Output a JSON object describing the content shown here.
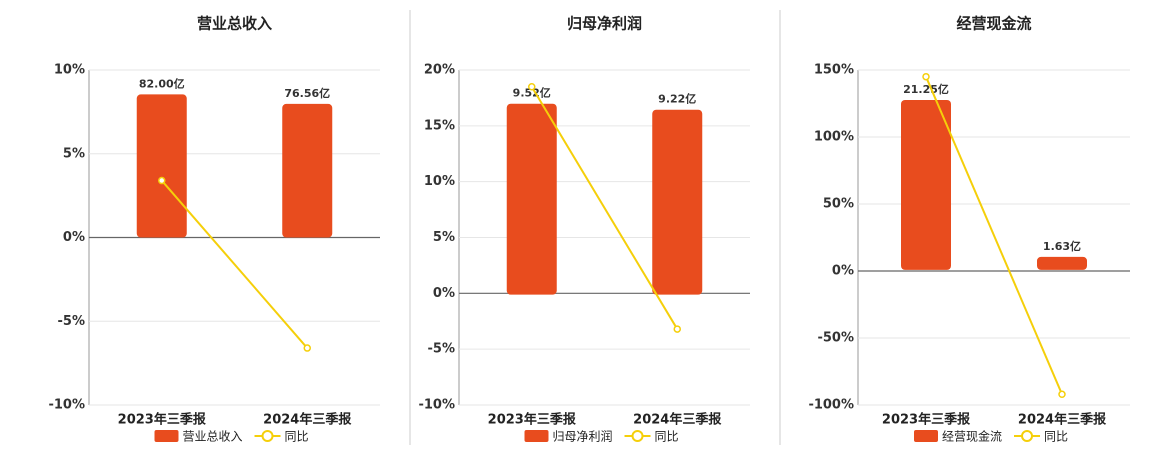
{
  "chart_data": [
    {
      "type": "bar",
      "title": "营业总收入",
      "categories": [
        "2023年三季报",
        "2024年三季报"
      ],
      "series": [
        {
          "name": "营业总收入",
          "color": "#e84c1e",
          "axis": "y2",
          "values": [
            82.0,
            76.56
          ],
          "value_labels": [
            "82.00亿",
            "76.56亿"
          ]
        },
        {
          "name": "同比",
          "type": "line",
          "color": "#f5cf0a",
          "values": [
            3.4,
            -6.6
          ]
        }
      ],
      "ylim": [
        -10,
        10
      ],
      "yticks": [
        {
          "value": -10,
          "label": "-10%"
        },
        {
          "value": -5,
          "label": "-5%"
        },
        {
          "value": 0,
          "label": "0%"
        },
        {
          "value": 5,
          "label": "5%"
        },
        {
          "value": 10,
          "label": "10%"
        }
      ],
      "y2lim": [
        -96,
        96
      ],
      "grid": true
    },
    {
      "type": "bar",
      "title": "归母净利润",
      "categories": [
        "2023年三季报",
        "2024年三季报"
      ],
      "series": [
        {
          "name": "归母净利润",
          "color": "#e84c1e",
          "axis": "y2",
          "values": [
            9.52,
            9.22
          ],
          "value_labels": [
            "9.52亿",
            "9.22亿"
          ]
        },
        {
          "name": "同比",
          "type": "line",
          "color": "#f5cf0a",
          "values": [
            18.5,
            -3.2
          ]
        }
      ],
      "ylim": [
        -10,
        20
      ],
      "yticks": [
        {
          "value": -10,
          "label": "-10%"
        },
        {
          "value": -5,
          "label": "-5%"
        },
        {
          "value": 0,
          "label": "0%"
        },
        {
          "value": 5,
          "label": "5%"
        },
        {
          "value": 10,
          "label": "10%"
        },
        {
          "value": 15,
          "label": "15%"
        },
        {
          "value": 20,
          "label": "20%"
        }
      ],
      "y2lim": [
        -5.5,
        11.2
      ],
      "grid": true
    },
    {
      "type": "bar",
      "title": "经营现金流",
      "categories": [
        "2023年三季报",
        "2024年三季报"
      ],
      "series": [
        {
          "name": "经营现金流",
          "color": "#e84c1e",
          "axis": "y2",
          "values": [
            21.25,
            1.63
          ],
          "value_labels": [
            "21.25亿",
            "1.63亿"
          ]
        },
        {
          "name": "同比",
          "type": "line",
          "color": "#f5cf0a",
          "values": [
            145,
            -92
          ]
        }
      ],
      "ylim": [
        -100,
        150
      ],
      "yticks": [
        {
          "value": -100,
          "label": "-100%"
        },
        {
          "value": -50,
          "label": "-50%"
        },
        {
          "value": 0,
          "label": "0%"
        },
        {
          "value": 50,
          "label": "50%"
        },
        {
          "value": 100,
          "label": "100%"
        },
        {
          "value": 150,
          "label": "150%"
        }
      ],
      "y2lim": [
        -16.9,
        25
      ],
      "grid": true
    }
  ]
}
